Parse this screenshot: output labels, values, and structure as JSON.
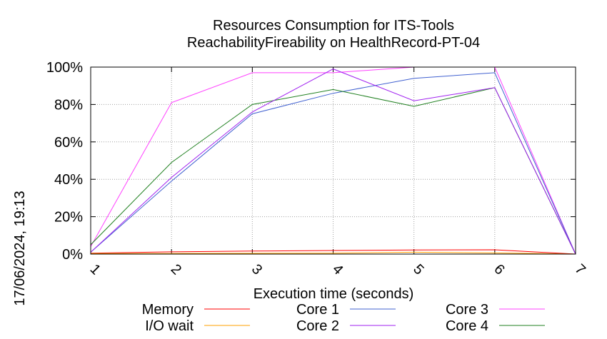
{
  "chart_data": {
    "type": "line",
    "title": "Resources Consumption for ITS-Tools",
    "subtitle": "ReachabilityFireability on HealthRecord-PT-04",
    "xlabel": "Execution time (seconds)",
    "ylabel": "",
    "side_label": "17/06/2024, 19:13",
    "x": [
      1,
      2,
      3,
      4,
      5,
      6,
      7
    ],
    "x_ticks": [
      "1",
      "2",
      "3",
      "4",
      "5",
      "6",
      "7"
    ],
    "y_ticks": [
      "0%",
      "20%",
      "40%",
      "60%",
      "80%",
      "100%"
    ],
    "xlim": [
      1,
      7
    ],
    "ylim": [
      0,
      100
    ],
    "grid": true,
    "legend_position": "bottom",
    "series": [
      {
        "name": "Memory",
        "color": "#ff0000",
        "values": [
          0.5,
          1.2,
          1.6,
          1.9,
          2.2,
          2.3,
          0
        ]
      },
      {
        "name": "I/O wait",
        "color": "#ffa000",
        "values": [
          0.3,
          0.3,
          0.4,
          0.5,
          1.0,
          0.6,
          0
        ]
      },
      {
        "name": "Core 1",
        "color": "#4060d0",
        "values": [
          1,
          39,
          75,
          86,
          94,
          97,
          0
        ]
      },
      {
        "name": "Core 2",
        "color": "#a020f0",
        "values": [
          1,
          41,
          76,
          99,
          82,
          89,
          0
        ]
      },
      {
        "name": "Core 3",
        "color": "#ff40ff",
        "values": [
          4,
          81,
          97,
          97,
          100,
          100,
          0
        ]
      },
      {
        "name": "Core 4",
        "color": "#208020",
        "values": [
          5,
          49,
          80,
          88,
          79,
          89,
          0
        ]
      }
    ]
  }
}
